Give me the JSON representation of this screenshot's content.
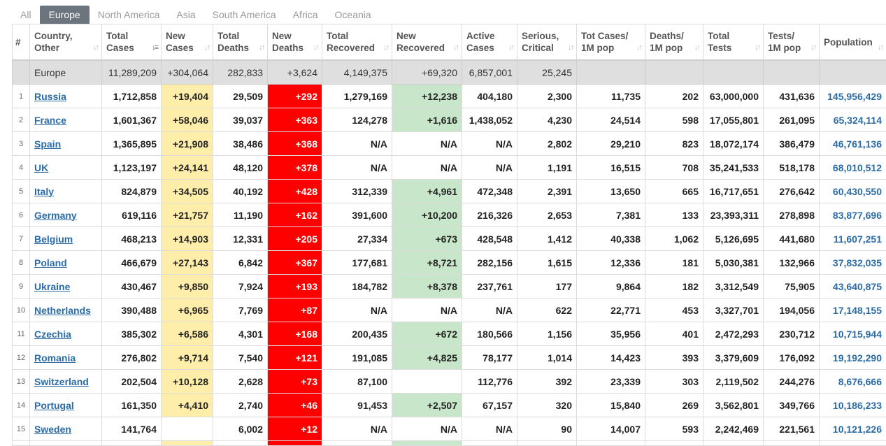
{
  "tabs": [
    "All",
    "Europe",
    "North America",
    "Asia",
    "South America",
    "Africa",
    "Oceania"
  ],
  "active_tab": 1,
  "columns": [
    {
      "l1": "#",
      "l2": ""
    },
    {
      "l1": "Country,",
      "l2": "Other"
    },
    {
      "l1": "Total",
      "l2": "Cases"
    },
    {
      "l1": "New",
      "l2": "Cases"
    },
    {
      "l1": "Total",
      "l2": "Deaths"
    },
    {
      "l1": "New",
      "l2": "Deaths"
    },
    {
      "l1": "Total",
      "l2": "Recovered"
    },
    {
      "l1": "New",
      "l2": "Recovered"
    },
    {
      "l1": "Active",
      "l2": "Cases"
    },
    {
      "l1": "Serious,",
      "l2": "Critical"
    },
    {
      "l1": "Tot Cases/",
      "l2": "1M pop"
    },
    {
      "l1": "Deaths/",
      "l2": "1M pop"
    },
    {
      "l1": "Total",
      "l2": "Tests"
    },
    {
      "l1": "Tests/",
      "l2": "1M pop"
    },
    {
      "l1": "Population",
      "l2": ""
    }
  ],
  "region_row": [
    "",
    "Europe",
    "11,289,209",
    "+304,064",
    "282,833",
    "+3,624",
    "4,149,375",
    "+69,320",
    "6,857,001",
    "25,245",
    "",
    "",
    "",
    "",
    ""
  ],
  "rows": [
    [
      "1",
      "Russia",
      "1,712,858",
      "+19,404",
      "29,509",
      "+292",
      "1,279,169",
      "+12,238",
      "404,180",
      "2,300",
      "11,735",
      "202",
      "63,000,000",
      "431,636",
      "145,956,429"
    ],
    [
      "2",
      "France",
      "1,601,367",
      "+58,046",
      "39,037",
      "+363",
      "124,278",
      "+1,616",
      "1,438,052",
      "4,230",
      "24,514",
      "598",
      "17,055,801",
      "261,095",
      "65,324,114"
    ],
    [
      "3",
      "Spain",
      "1,365,895",
      "+21,908",
      "38,486",
      "+368",
      "N/A",
      "N/A",
      "N/A",
      "2,802",
      "29,210",
      "823",
      "18,072,174",
      "386,479",
      "46,761,136"
    ],
    [
      "4",
      "UK",
      "1,123,197",
      "+24,141",
      "48,120",
      "+378",
      "N/A",
      "N/A",
      "N/A",
      "1,191",
      "16,515",
      "708",
      "35,241,533",
      "518,178",
      "68,010,512"
    ],
    [
      "5",
      "Italy",
      "824,879",
      "+34,505",
      "40,192",
      "+428",
      "312,339",
      "+4,961",
      "472,348",
      "2,391",
      "13,650",
      "665",
      "16,717,651",
      "276,642",
      "60,430,550"
    ],
    [
      "6",
      "Germany",
      "619,116",
      "+21,757",
      "11,190",
      "+162",
      "391,600",
      "+10,200",
      "216,326",
      "2,653",
      "7,381",
      "133",
      "23,393,311",
      "278,898",
      "83,877,696"
    ],
    [
      "7",
      "Belgium",
      "468,213",
      "+14,903",
      "12,331",
      "+205",
      "27,334",
      "+673",
      "428,548",
      "1,412",
      "40,338",
      "1,062",
      "5,126,695",
      "441,680",
      "11,607,251"
    ],
    [
      "8",
      "Poland",
      "466,679",
      "+27,143",
      "6,842",
      "+367",
      "177,681",
      "+8,721",
      "282,156",
      "1,615",
      "12,336",
      "181",
      "5,030,381",
      "132,966",
      "37,832,035"
    ],
    [
      "9",
      "Ukraine",
      "430,467",
      "+9,850",
      "7,924",
      "+193",
      "184,782",
      "+8,378",
      "237,761",
      "177",
      "9,864",
      "182",
      "3,312,549",
      "75,905",
      "43,640,875"
    ],
    [
      "10",
      "Netherlands",
      "390,488",
      "+6,965",
      "7,769",
      "+87",
      "N/A",
      "N/A",
      "N/A",
      "622",
      "22,771",
      "453",
      "3,327,701",
      "194,056",
      "17,148,155"
    ],
    [
      "11",
      "Czechia",
      "385,302",
      "+6,586",
      "4,301",
      "+168",
      "200,435",
      "+672",
      "180,566",
      "1,156",
      "35,956",
      "401",
      "2,472,293",
      "230,712",
      "10,715,944"
    ],
    [
      "12",
      "Romania",
      "276,802",
      "+9,714",
      "7,540",
      "+121",
      "191,085",
      "+4,825",
      "78,177",
      "1,014",
      "14,423",
      "393",
      "3,379,609",
      "176,092",
      "19,192,290"
    ],
    [
      "13",
      "Switzerland",
      "202,504",
      "+10,128",
      "2,628",
      "+73",
      "87,100",
      "",
      "112,776",
      "392",
      "23,339",
      "303",
      "2,119,502",
      "244,276",
      "8,676,666"
    ],
    [
      "14",
      "Portugal",
      "161,350",
      "+4,410",
      "2,740",
      "+46",
      "91,453",
      "+2,507",
      "67,157",
      "320",
      "15,840",
      "269",
      "3,562,801",
      "349,766",
      "10,186,233"
    ],
    [
      "15",
      "Sweden",
      "141,764",
      "",
      "6,002",
      "+12",
      "N/A",
      "N/A",
      "N/A",
      "90",
      "14,007",
      "593",
      "2,242,469",
      "221,561",
      "10,121,226"
    ]
  ],
  "colors": {
    "new_cases_bg": "#ffeeaa",
    "new_deaths_bg": "#ff0000",
    "new_recovered_bg": "#c8e6c9",
    "link": "#2b6ba6",
    "region_bg": "#dfdfdf",
    "active_tab_bg": "#6c757d"
  },
  "sort_icon": "sort-arrows-icon"
}
